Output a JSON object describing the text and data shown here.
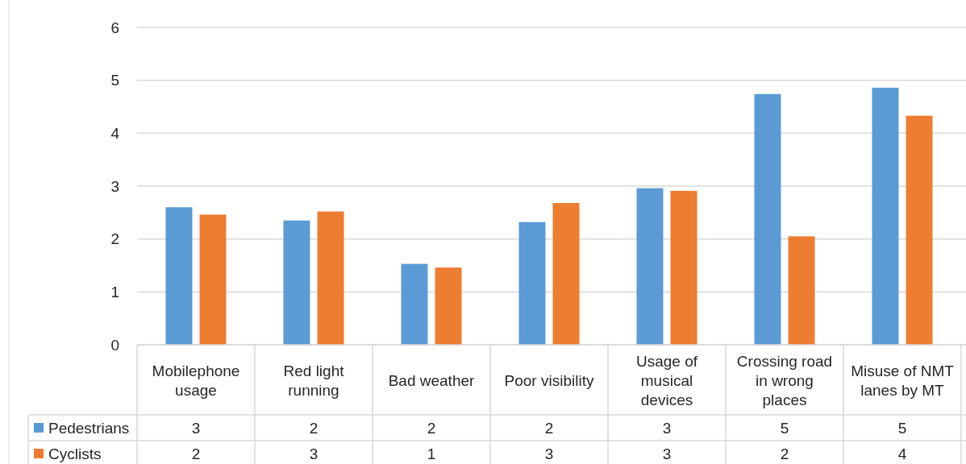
{
  "chart_data": {
    "type": "bar",
    "categories": [
      "Mobilephone usage",
      "Red light running",
      "Bad weather",
      "Poor visibility",
      "Usage of musical devices",
      "Crossing road in wrong places",
      "Misuse of NMT lanes by MT"
    ],
    "series": [
      {
        "name": "Pedestrians",
        "color": "#5b9bd5",
        "values": [
          2.6,
          2.35,
          1.53,
          2.32,
          2.96,
          4.74,
          4.86
        ],
        "value_labels": [
          "3",
          "2",
          "2",
          "2",
          "3",
          "5",
          "5"
        ]
      },
      {
        "name": "Cyclists",
        "color": "#ed7d31",
        "values": [
          2.46,
          2.52,
          1.46,
          2.68,
          2.91,
          2.05,
          4.33
        ],
        "value_labels": [
          "2",
          "3",
          "1",
          "3",
          "3",
          "2",
          "4"
        ]
      }
    ],
    "ylim": [
      0,
      6
    ],
    "yticks": [
      0,
      1,
      2,
      3,
      4,
      5,
      6
    ],
    "grid": "y",
    "legend": "bottom left"
  }
}
